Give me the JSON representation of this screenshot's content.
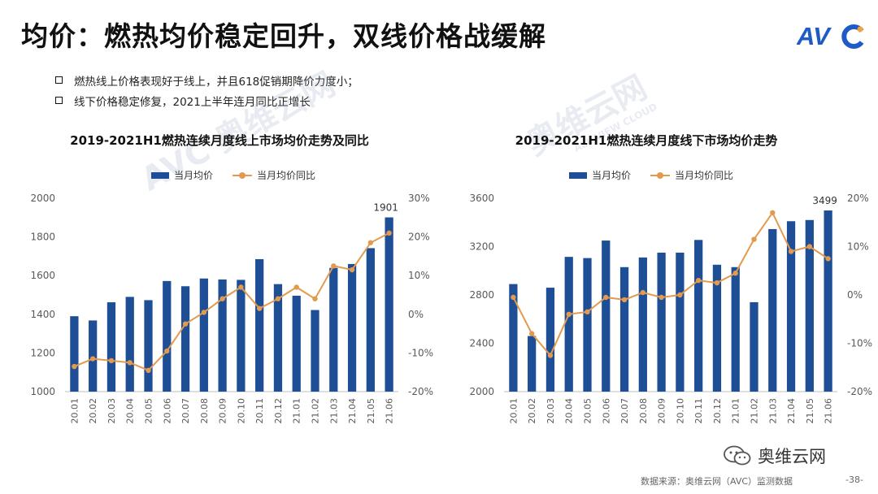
{
  "title": "均价：燃热均价稳定回升，双线价格战缓解",
  "brand": {
    "logo_text": "AVC",
    "accent_color": "#1E5BC6"
  },
  "bullets": [
    "燃热线上价格表现好于线上，并且618促销期降价力度小；",
    "线下价格稳定修复，2021上半年连月同比正增长"
  ],
  "watermark": {
    "text": "奥维云网",
    "sub_text": "ALL VIEW CLOUD"
  },
  "colors": {
    "bar": "#1D4E96",
    "line": "#E39A4E",
    "axis": "#bfbfbf",
    "tick": "#595959"
  },
  "chart_data": [
    {
      "type": "bar+line",
      "title": "2019-2021H1燃热连续月度线上市场均价走势及同比",
      "legend": [
        "当月均价",
        "当月均价同比"
      ],
      "categories": [
        "20.01",
        "20.02",
        "20.03",
        "20.04",
        "20.05",
        "20.06",
        "20.07",
        "20.08",
        "20.09",
        "20.10",
        "20.11",
        "20.12",
        "21.01",
        "21.02",
        "21.03",
        "21.04",
        "21.05",
        "21.06"
      ],
      "series": [
        {
          "name": "当月均价",
          "type": "bar",
          "axis": "left",
          "values": [
            1390,
            1368,
            1462,
            1490,
            1473,
            1572,
            1545,
            1585,
            1580,
            1578,
            1685,
            1556,
            1496,
            1422,
            1640,
            1660,
            1742,
            1901
          ]
        },
        {
          "name": "当月均价同比",
          "type": "line",
          "axis": "right",
          "values": [
            -13.5,
            -11.5,
            -12.0,
            -12.5,
            -14.5,
            -9.5,
            -2.5,
            0.5,
            4.0,
            7.0,
            1.5,
            4.0,
            7.0,
            4.0,
            12.5,
            11.5,
            18.5,
            21.0
          ]
        }
      ],
      "ylim_left": [
        1000,
        2000
      ],
      "yticks_left": [
        "1000",
        "1200",
        "1400",
        "1600",
        "1800",
        "2000"
      ],
      "ylim_right": [
        -20,
        30
      ],
      "yticks_right": [
        "-20%",
        "-10%",
        "0%",
        "10%",
        "20%",
        "30%"
      ],
      "last_label": "1901"
    },
    {
      "type": "bar+line",
      "title": "2019-2021H1燃热连续月度线下市场均价走势",
      "legend": [
        "当月均价",
        "当月均价同比"
      ],
      "categories": [
        "20.01",
        "20.02",
        "20.03",
        "20.04",
        "20.05",
        "20.06",
        "20.07",
        "20.08",
        "20.09",
        "20.10",
        "20.11",
        "20.12",
        "21.01",
        "21.02",
        "21.03",
        "21.04",
        "21.05",
        "21.06"
      ],
      "series": [
        {
          "name": "当月均价",
          "type": "bar",
          "axis": "left",
          "values": [
            2890,
            2460,
            2860,
            3115,
            3105,
            3250,
            3030,
            3110,
            3150,
            3150,
            3255,
            3050,
            3030,
            2740,
            3345,
            3410,
            3420,
            3499
          ]
        },
        {
          "name": "当月均价同比",
          "type": "line",
          "axis": "right",
          "values": [
            -0.5,
            -8.0,
            -12.5,
            -4.0,
            -3.5,
            -0.5,
            -1.0,
            0.5,
            -0.5,
            0.0,
            3.0,
            2.5,
            4.5,
            11.5,
            17.0,
            9.0,
            10.0,
            7.5
          ]
        }
      ],
      "ylim_left": [
        2000,
        3600
      ],
      "yticks_left": [
        "2000",
        "2400",
        "2800",
        "3200",
        "3600"
      ],
      "ylim_right": [
        -20,
        20
      ],
      "yticks_right": [
        "-20%",
        "-10%",
        "0%",
        "10%",
        "20%"
      ],
      "last_label": "3499"
    }
  ],
  "footer": {
    "wechat_label": "奥维云网",
    "source": "数据来源：奥维云网（AVC）监测数据",
    "page": "-38-"
  }
}
